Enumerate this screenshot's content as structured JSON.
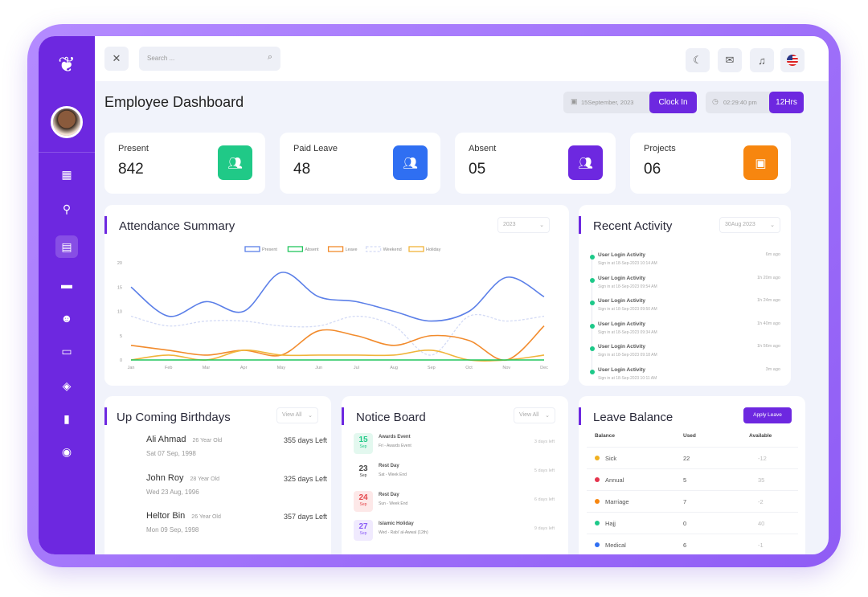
{
  "header": {
    "search_placeholder": "Search ...",
    "title": "Employee Dashboard",
    "date": "15September, 2023",
    "clock_in": "Clock In",
    "time": "02:29:40 pm",
    "hours": "12Hrs"
  },
  "colors": {
    "accent": "#6d28e0",
    "present": "#20c987",
    "paid_leave": "#2f6ff2",
    "absent": "#6d28e0",
    "projects": "#f7860f"
  },
  "sidebar": {
    "items": [
      {
        "icon": "dashboard-icon"
      },
      {
        "icon": "user-search-icon"
      },
      {
        "icon": "calendar-icon",
        "active": true
      },
      {
        "icon": "card-icon"
      },
      {
        "icon": "robot-icon"
      },
      {
        "icon": "chat-icon"
      },
      {
        "icon": "stack-icon"
      },
      {
        "icon": "bar-chart-icon"
      },
      {
        "icon": "user-circle-icon"
      }
    ]
  },
  "stats": [
    {
      "label": "Present",
      "value": "842"
    },
    {
      "label": "Paid Leave",
      "value": "48"
    },
    {
      "label": "Absent",
      "value": "05"
    },
    {
      "label": "Projects",
      "value": "06"
    }
  ],
  "attendance": {
    "title": "Attendance Summary",
    "year": "2023"
  },
  "chart_data": {
    "type": "line",
    "x": [
      "Jan",
      "Feb",
      "Mar",
      "Apr",
      "May",
      "Jun",
      "Jul",
      "Aug",
      "Sep",
      "Oct",
      "Nov",
      "Dec"
    ],
    "ylim": [
      0,
      20
    ],
    "yticks": [
      "0",
      "5",
      "10",
      "15",
      "20"
    ],
    "legend": "top",
    "grid": false,
    "series": [
      {
        "name": "Present",
        "color": "#5b7fe8",
        "values": [
          15,
          9,
          12,
          10,
          18,
          13,
          12,
          10,
          8,
          10,
          17,
          13
        ]
      },
      {
        "name": "Absent",
        "color": "#22c55e",
        "values": [
          0,
          0,
          0,
          0,
          0,
          0,
          0,
          0,
          0,
          0,
          0,
          0
        ]
      },
      {
        "name": "Leave",
        "color": "#f28b2c",
        "values": [
          3,
          2,
          1,
          2,
          1,
          6,
          5,
          3,
          5,
          4,
          0,
          7
        ]
      },
      {
        "name": "Weekend",
        "color": "#d4dbf5",
        "dashed": true,
        "values": [
          9,
          7,
          8,
          8,
          7,
          7,
          9,
          7,
          1,
          9,
          8,
          9
        ]
      },
      {
        "name": "Holiday",
        "color": "#f0b43a",
        "values": [
          0,
          1,
          0,
          2,
          1,
          1,
          1,
          1,
          2,
          0,
          0,
          1
        ]
      }
    ]
  },
  "activity": {
    "title": "Recent Activity",
    "filter": "30Aug 2023",
    "items": [
      {
        "title": "User Login Activity",
        "sub": "Sign in at 18-Sep-2023 10:14 AM",
        "ago": "6m ago"
      },
      {
        "title": "User Login Activity",
        "sub": "Sign in at 18-Sep-2023 09:54 AM",
        "ago": "1h 20m ago"
      },
      {
        "title": "User Login Activity",
        "sub": "Sign in at 18-Sep-2023 09:50 AM",
        "ago": "1h 24m ago"
      },
      {
        "title": "User Login Activity",
        "sub": "Sign in at 18-Sep-2023 09:34 AM",
        "ago": "1h 40m ago"
      },
      {
        "title": "User Login Activity",
        "sub": "Sign in at 18-Sep-2023 09:18 AM",
        "ago": "1h 56m ago"
      },
      {
        "title": "User Login Activity",
        "sub": "Sign in at 18-Sep-2023 10:11 AM",
        "ago": "3m ago"
      }
    ]
  },
  "birthdays": {
    "title": "Up Coming Birthdays",
    "filter": "View All",
    "items": [
      {
        "name": "Ali Ahmad",
        "age": "26 Year Old",
        "date": "Sat 07 Sep, 1998",
        "left": "355 days Left"
      },
      {
        "name": "John Roy",
        "age": "28 Year Old",
        "date": "Wed 23 Aug, 1996",
        "left": "325 days Left"
      },
      {
        "name": "Heltor Bin",
        "age": "26 Year Old",
        "date": "Mon 09 Sep, 1998",
        "left": "357 days Left"
      }
    ]
  },
  "notices": {
    "title": "Notice Board",
    "filter": "View All",
    "items": [
      {
        "day": "15",
        "month": "Sep",
        "title": "Awards Event",
        "sub": "Fri - Awards Event",
        "left": "3 days left",
        "color": "#20c987",
        "bg": "#e3f8ef"
      },
      {
        "day": "23",
        "month": "Sep",
        "title": "Rest Day",
        "sub": "Sat - Week End",
        "left": "5 days left",
        "color": "#444",
        "bg": "#ffffff"
      },
      {
        "day": "24",
        "month": "Sep",
        "title": "Rest Day",
        "sub": "Sun - Week End",
        "left": "6 days left",
        "color": "#e5484d",
        "bg": "#fde8e8"
      },
      {
        "day": "27",
        "month": "Sep",
        "title": "Islamic Holiday",
        "sub": "Wed - Rabi' al-Awwal (12th)",
        "left": "9 days left",
        "color": "#8b5cf6",
        "bg": "#f0eafe"
      }
    ]
  },
  "leave": {
    "title": "Leave Balance",
    "apply": "Apply Leave",
    "headers": [
      "Balance",
      "Used",
      "Available"
    ],
    "rows": [
      {
        "type": "Sick",
        "used": "22",
        "available": "-12",
        "color": "#f0b020"
      },
      {
        "type": "Annual",
        "used": "5",
        "available": "35",
        "color": "#e5344d"
      },
      {
        "type": "Marriage",
        "used": "7",
        "available": "-2",
        "color": "#f7860f"
      },
      {
        "type": "Hajj",
        "used": "0",
        "available": "40",
        "color": "#1dc989"
      },
      {
        "type": "Medical",
        "used": "6",
        "available": "-1",
        "color": "#2f6ff2"
      }
    ]
  }
}
